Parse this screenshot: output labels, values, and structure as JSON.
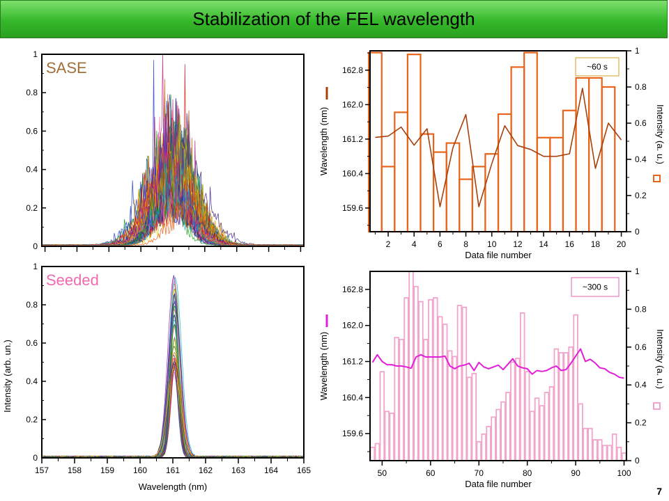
{
  "slide": {
    "title": "Stabilization of the FEL wavelength",
    "page_number": "7"
  },
  "colors": {
    "sase_label": "#a0703a",
    "seeded_label": "#f06ab0",
    "long_bar": "#e8641a",
    "long_line": "#a8400c",
    "short_bar": "#f2a4cc",
    "short_line": "#e21fd8",
    "title_bar": "#3cbd2e"
  },
  "chart_data": [
    {
      "id": "sase",
      "type": "line",
      "panel_label": "SASE",
      "xlabel": "",
      "ylabel": "",
      "xlim": [
        156.9,
        165.1
      ],
      "ylim": [
        0,
        1
      ],
      "y_ticks": [
        "0",
        "0.2",
        "0.4",
        "0.6",
        "0.8",
        "1"
      ],
      "x_ticks_shown": false,
      "grid": false,
      "note": "many overlapping single-shot spectra, spread roughly 159.5-162.5 nm, peak near 161.2 nm"
    },
    {
      "id": "seeded",
      "type": "line",
      "panel_label": "Seeded",
      "xlabel": "Wavelength (nm)",
      "ylabel": "Intensity (arb. un.)",
      "xlim": [
        157,
        165
      ],
      "ylim": [
        0,
        1
      ],
      "x_ticks": [
        "157",
        "158",
        "159",
        "160",
        "161",
        "162",
        "163",
        "164",
        "165"
      ],
      "y_ticks": [
        "0",
        "0.2",
        "0.4",
        "0.6",
        "0.8",
        "1"
      ],
      "grid": false,
      "note": "many overlapping single-shot spectra, narrow peak centred near 161.1 nm"
    },
    {
      "id": "sase-stability",
      "type": "bar",
      "annotation": "~60 s",
      "xlabel": "Data file number",
      "ylabel_left": "Wavelength (nm)",
      "ylabel_right": "Intensity (a. u.)",
      "x_ticks": [
        "2",
        "4",
        "6",
        "8",
        "10",
        "12",
        "14",
        "16",
        "18",
        "20"
      ],
      "y_left_ticks": [
        "159.6",
        "160.4",
        "161.2",
        "162.0",
        "162.8"
      ],
      "y_right_ticks": [
        "0",
        "0.2",
        "0.4",
        "0.6",
        "0.8",
        "1"
      ],
      "xlim": [
        0.6,
        20.4
      ],
      "ylim_left": [
        159.05,
        163.25
      ],
      "ylim_right": [
        0,
        1
      ],
      "x": [
        1,
        2,
        3,
        4,
        5,
        6,
        7,
        8,
        9,
        10,
        11,
        12,
        13,
        14,
        15,
        16,
        17,
        18,
        19,
        20
      ],
      "series": [
        {
          "axis": "right",
          "style": "hollow-bar",
          "values": [
            0.99,
            0.36,
            0.66,
            0.98,
            0.54,
            0.44,
            0.49,
            0.29,
            0.36,
            0.43,
            0.65,
            0.91,
            0.99,
            0.52,
            0.52,
            0.67,
            0.85,
            0.85,
            0.8,
            0.0
          ]
        },
        {
          "axis": "left",
          "style": "line",
          "values": [
            161.24,
            161.27,
            161.48,
            161.06,
            161.44,
            159.63,
            161.0,
            161.77,
            159.63,
            160.63,
            161.51,
            161.05,
            160.96,
            160.8,
            160.8,
            160.86,
            162.38,
            160.52,
            161.57,
            161.18
          ]
        }
      ]
    },
    {
      "id": "seeded-stability",
      "type": "bar",
      "annotation": "~300 s",
      "xlabel": "Data file number",
      "ylabel_left": "Wavelength (nm)",
      "ylabel_right": "Intensity (a. u.)",
      "x_ticks": [
        "50",
        "60",
        "70",
        "80",
        "90",
        "100"
      ],
      "y_left_ticks": [
        "159.6",
        "160.4",
        "161.2",
        "162.0",
        "162.8"
      ],
      "y_right_ticks": [
        "0",
        "0.2",
        "0.4",
        "0.6",
        "0.8",
        "1"
      ],
      "xlim": [
        47.5,
        100.5
      ],
      "ylim_left": [
        159.0,
        163.2
      ],
      "ylim_right": [
        0,
        1
      ],
      "x": [
        48,
        49,
        50,
        51,
        52,
        53,
        54,
        55,
        56,
        57,
        58,
        59,
        60,
        61,
        62,
        63,
        64,
        65,
        66,
        67,
        68,
        69,
        70,
        71,
        72,
        73,
        74,
        75,
        76,
        77,
        78,
        79,
        80,
        81,
        82,
        83,
        84,
        85,
        86,
        87,
        88,
        89,
        90,
        91,
        92,
        93,
        94,
        95,
        96,
        97,
        98,
        99,
        100
      ],
      "series": [
        {
          "axis": "right",
          "style": "hollow-bar",
          "values": [
            0.07,
            0.09,
            0.47,
            0.26,
            0.25,
            0.65,
            0.64,
            0.86,
            1.0,
            0.92,
            0.84,
            0.64,
            0.85,
            0.86,
            0.76,
            0.72,
            0.58,
            0.55,
            0.82,
            0.81,
            0.44,
            0.46,
            0.1,
            0.14,
            0.18,
            0.23,
            0.27,
            0.31,
            0.36,
            0.52,
            0.54,
            0.78,
            0.47,
            0.26,
            0.33,
            0.29,
            0.36,
            0.39,
            0.59,
            0.57,
            0.57,
            0.6,
            0.77,
            0.3,
            0.17,
            0.17,
            0.11,
            0.11,
            0.08,
            0.08,
            0.14,
            0.07,
            0.04
          ]
        },
        {
          "axis": "left",
          "style": "line",
          "values": [
            161.18,
            161.35,
            161.2,
            161.13,
            161.13,
            161.1,
            161.1,
            161.08,
            161.05,
            161.3,
            161.35,
            161.3,
            161.3,
            161.3,
            161.3,
            161.32,
            161.1,
            161.04,
            161.1,
            161.12,
            161.16,
            161.0,
            161.18,
            161.08,
            161.04,
            161.08,
            161.12,
            161.02,
            161.14,
            161.26,
            161.1,
            161.06,
            161.04,
            160.92,
            161.0,
            160.98,
            161.0,
            161.06,
            161.1,
            161.0,
            161.02,
            161.16,
            161.32,
            161.48,
            161.2,
            161.25,
            161.17,
            161.06,
            161.04,
            160.96,
            160.92,
            160.85,
            160.83
          ]
        }
      ]
    }
  ]
}
